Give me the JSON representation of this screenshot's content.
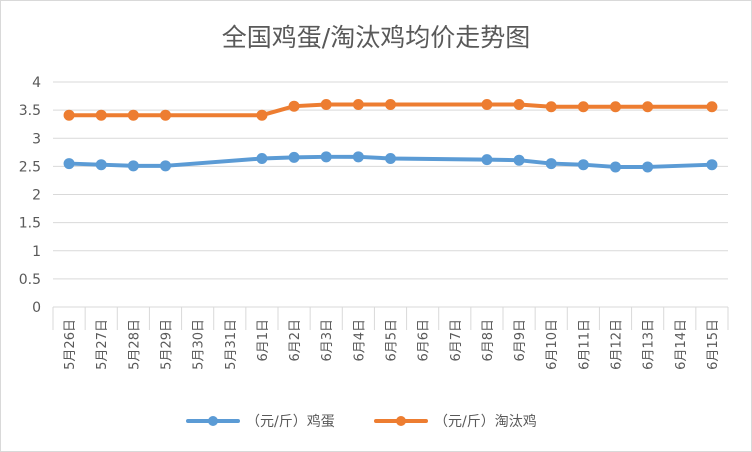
{
  "chart_data": {
    "type": "line",
    "title": "全国鸡蛋/淘汰鸡均价走势图",
    "categories": [
      "5月26日",
      "5月27日",
      "5月28日",
      "5月29日",
      "5月30日",
      "5月31日",
      "6月1日",
      "6月2日",
      "6月3日",
      "6月4日",
      "6月5日",
      "6月6日",
      "6月7日",
      "6月8日",
      "6月9日",
      "6月10日",
      "6月11日",
      "6月12日",
      "6月13日",
      "6月14日",
      "6月15日"
    ],
    "ylim": [
      0,
      4
    ],
    "yticks": [
      "0",
      "0.5",
      "1",
      "1.5",
      "2",
      "2.5",
      "3",
      "3.5",
      "4"
    ],
    "ytick_values": [
      0,
      0.5,
      1,
      1.5,
      2,
      2.5,
      3,
      3.5,
      4
    ],
    "grid": true,
    "legend_position": "bottom",
    "series": [
      {
        "name": "（元/斤）鸡蛋",
        "color": "#5B9BD5",
        "values": [
          2.55,
          2.53,
          2.51,
          2.51,
          null,
          null,
          2.64,
          2.66,
          2.67,
          2.67,
          2.64,
          null,
          null,
          2.62,
          2.61,
          2.55,
          2.53,
          2.49,
          2.49,
          null,
          2.53
        ]
      },
      {
        "name": "（元/斤）淘汰鸡",
        "color": "#ED7D31",
        "values": [
          3.41,
          3.41,
          3.41,
          3.41,
          null,
          null,
          3.41,
          3.57,
          3.6,
          3.6,
          3.6,
          null,
          null,
          3.6,
          3.6,
          3.56,
          3.56,
          3.56,
          3.56,
          null,
          3.56
        ]
      }
    ]
  }
}
